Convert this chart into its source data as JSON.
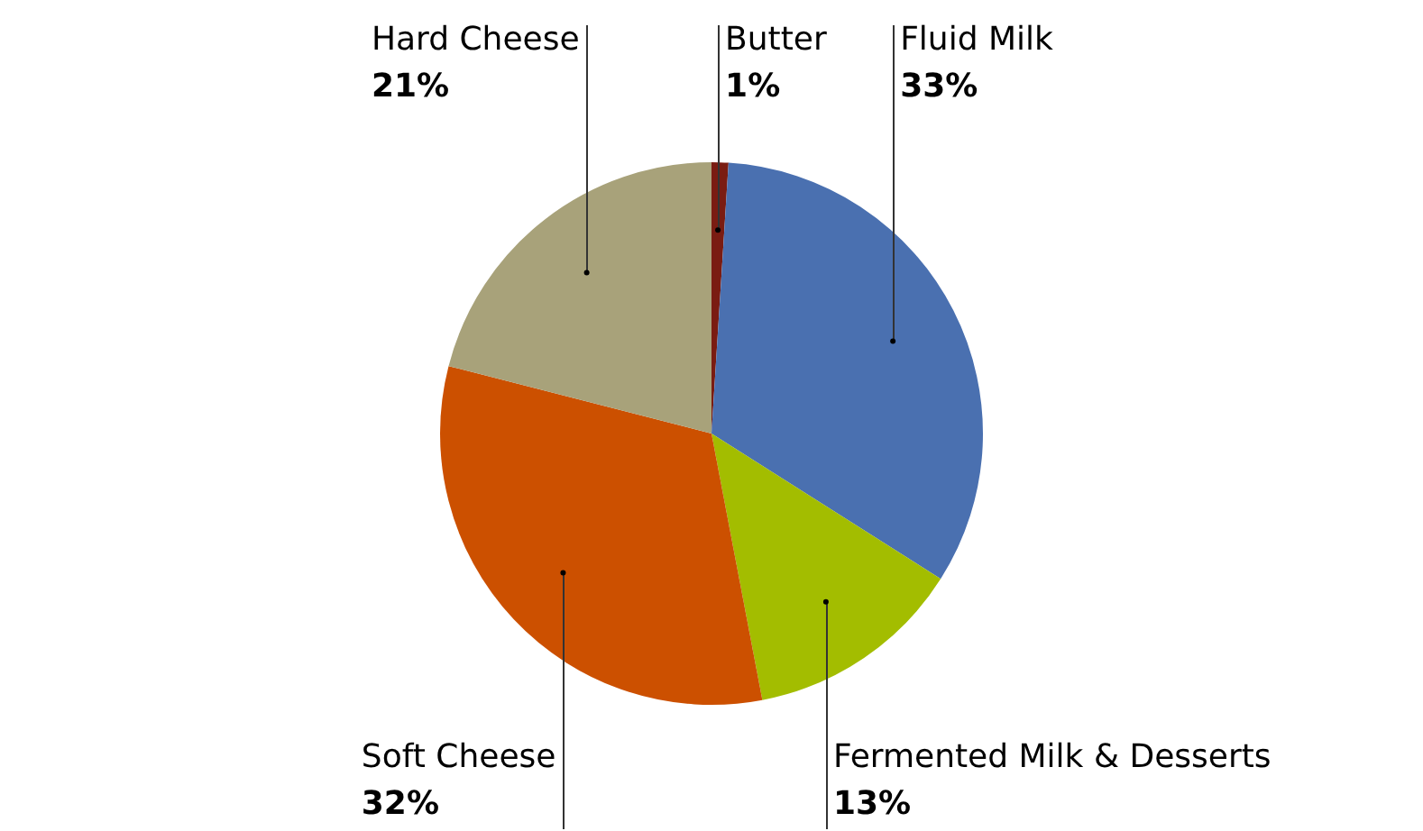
{
  "chart_data": {
    "type": "pie",
    "categories": [
      "Butter",
      "Fluid Milk",
      "Fermented Milk & Desserts",
      "Soft Cheese",
      "Hard Cheese"
    ],
    "values": [
      1,
      33,
      13,
      32,
      21
    ],
    "colors": [
      "#7a1c12",
      "#4a70b0",
      "#a3bd00",
      "#cc5000",
      "#a8a27a"
    ],
    "value_labels": [
      "1%",
      "33%",
      "13%",
      "32%",
      "21%"
    ]
  }
}
